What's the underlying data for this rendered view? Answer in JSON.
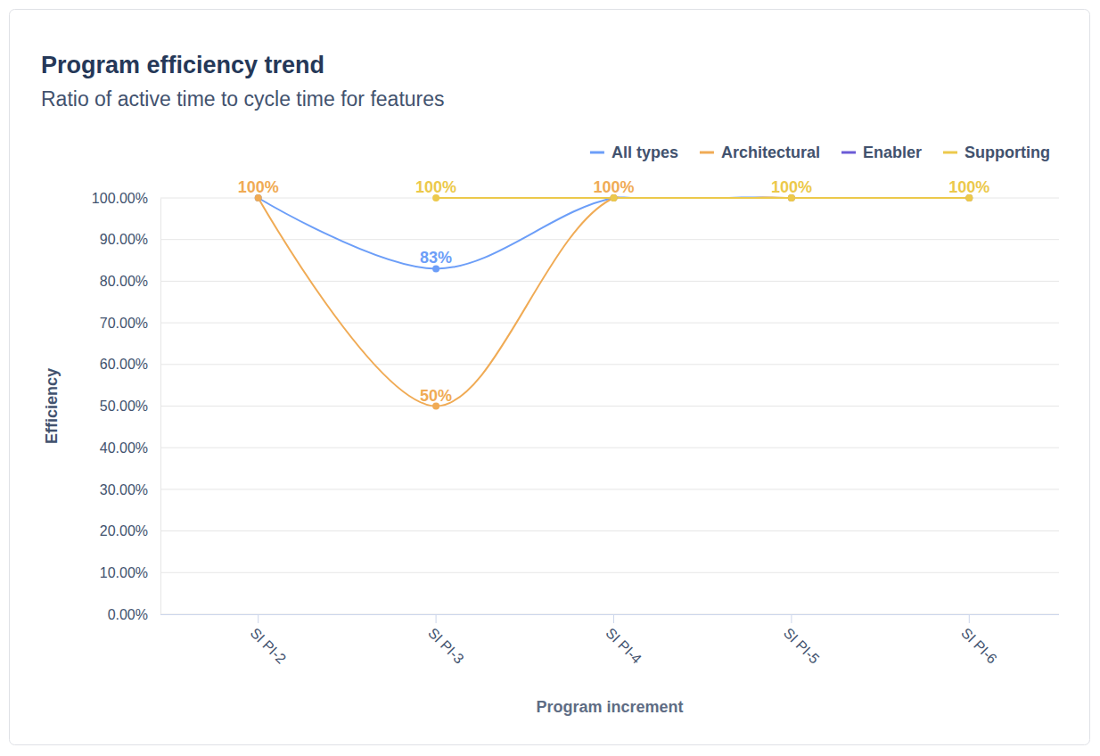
{
  "chart_data": {
    "type": "line",
    "title": "Program efficiency trend",
    "subtitle": "Ratio of active time to cycle time for features",
    "x_label": "Program increment",
    "y_label": "Efficiency",
    "categories": [
      "SI PI-2",
      "SI PI-3",
      "SI PI-4",
      "SI PI-5",
      "SI PI-6"
    ],
    "ylim": [
      0,
      100
    ],
    "yticks": [
      {
        "value": 0,
        "label": "0.00%"
      },
      {
        "value": 10,
        "label": "10.00%"
      },
      {
        "value": 20,
        "label": "20.00%"
      },
      {
        "value": 30,
        "label": "30.00%"
      },
      {
        "value": 40,
        "label": "40.00%"
      },
      {
        "value": 50,
        "label": "50.00%"
      },
      {
        "value": 60,
        "label": "60.00%"
      },
      {
        "value": 70,
        "label": "70.00%"
      },
      {
        "value": 80,
        "label": "80.00%"
      },
      {
        "value": 90,
        "label": "90.00%"
      },
      {
        "value": 100,
        "label": "100.00%"
      }
    ],
    "grid": true,
    "legend": "top-right",
    "data_labels": true,
    "marker": "circle",
    "series": [
      {
        "name": "All types",
        "color": "#6c9ef8",
        "values": [
          100,
          83,
          100,
          100,
          100
        ],
        "value_labels": [
          null,
          "83%",
          null,
          null,
          null
        ]
      },
      {
        "name": "Architectural",
        "color": "#f0ab55",
        "values": [
          100,
          50,
          100,
          100,
          100
        ],
        "value_labels": [
          "100%",
          "50%",
          "100%",
          null,
          null
        ]
      },
      {
        "name": "Enabler",
        "color": "#6b5bd6",
        "values": [
          null,
          null,
          null,
          null,
          null
        ],
        "value_labels": [
          null,
          null,
          null,
          null,
          null
        ]
      },
      {
        "name": "Supporting",
        "color": "#ecc94b",
        "values": [
          null,
          100,
          100,
          100,
          100
        ],
        "value_labels": [
          null,
          "100%",
          null,
          "100%",
          "100%"
        ]
      }
    ]
  }
}
